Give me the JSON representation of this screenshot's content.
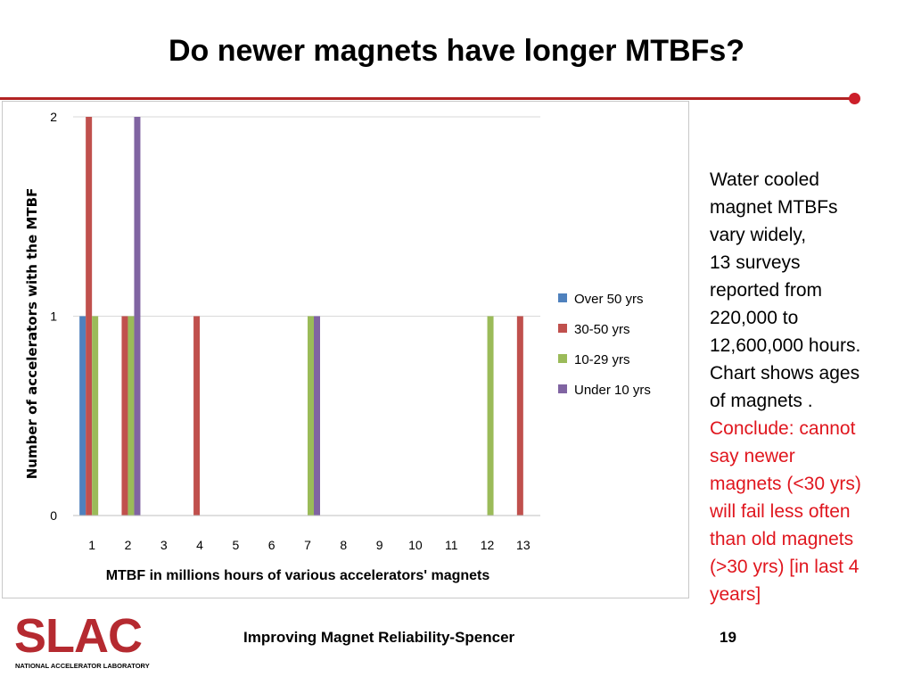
{
  "slide": {
    "title": "Do newer magnets have longer MTBFs?",
    "footer": "Improving Magnet Reliability-Spencer",
    "page_number": "19",
    "accent_color": "#b22222"
  },
  "side_text": {
    "black_lines": [
      "Water cooled",
      "magnet MTBFs",
      "vary widely,",
      "13 surveys",
      "reported  from",
      "220,000 to",
      "12,600,000 hours.",
      "Chart shows ages",
      "of magnets ."
    ],
    "red_lines": [
      "Conclude: cannot",
      "say newer",
      "magnets (<30 yrs)",
      "will fail less often",
      "than old magnets",
      "(>30 yrs) [in last 4",
      "years]"
    ],
    "red_color": "#e0161e"
  },
  "logo": {
    "text": "SLAC",
    "subtitle": "NATIONAL ACCELERATOR LABORATORY",
    "color": "#b52a30"
  },
  "chart_data": {
    "type": "bar",
    "categories": [
      "1",
      "2",
      "3",
      "4",
      "5",
      "6",
      "7",
      "8",
      "9",
      "10",
      "11",
      "12",
      "13"
    ],
    "series": [
      {
        "name": "Over 50 yrs",
        "color": "#4f81bd",
        "values": [
          1,
          0,
          0,
          0,
          0,
          0,
          0,
          0,
          0,
          0,
          0,
          0,
          0
        ]
      },
      {
        "name": "30-50 yrs",
        "color": "#c0504d",
        "values": [
          2,
          1,
          0,
          1,
          0,
          0,
          0,
          0,
          0,
          0,
          0,
          0,
          1
        ]
      },
      {
        "name": "10-29 yrs",
        "color": "#9bbb59",
        "values": [
          1,
          1,
          0,
          0,
          0,
          0,
          1,
          0,
          0,
          0,
          0,
          1,
          0
        ]
      },
      {
        "name": "Under 10 yrs",
        "color": "#8064a2",
        "values": [
          0,
          2,
          0,
          0,
          0,
          0,
          1,
          0,
          0,
          0,
          0,
          0,
          0
        ]
      }
    ],
    "xlabel": "MTBF in millions hours of various accelerators' magnets",
    "ylabel": "Number of accelerators with the MTBF",
    "ylim": [
      0,
      2
    ],
    "yticks": [
      "0",
      "1",
      "2"
    ],
    "grid": true,
    "legend_position": "right"
  }
}
